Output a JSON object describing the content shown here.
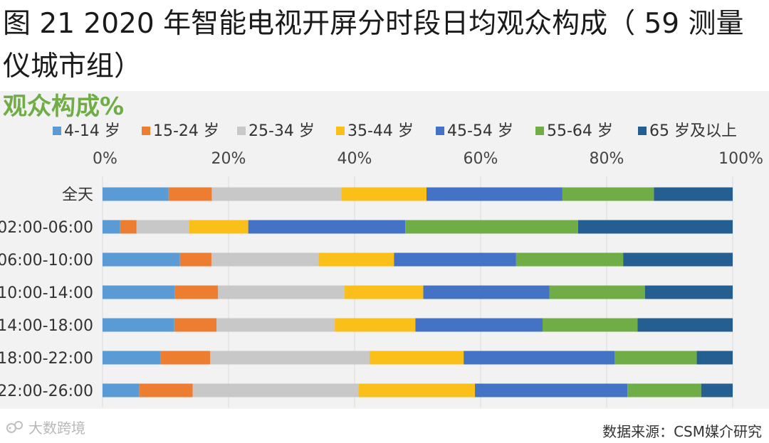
{
  "title": "图 21 2020 年智能电视开屏分时段日均观众构成（ 59 测量仪城市组）",
  "source": "数据来源：CSM媒介研究",
  "watermark": "大数跨境",
  "chart_data": {
    "type": "bar",
    "orientation": "horizontal",
    "stacked": true,
    "percent": true,
    "title": "观众构成%",
    "categories": [
      "全天",
      "02:00-06:00",
      "06:00-10:00",
      "10:00-14:00",
      "14:00-18:00",
      "18:00-22:00",
      "22:00-26:00"
    ],
    "x_ticks": [
      "0%",
      "20%",
      "40%",
      "60%",
      "80%",
      "100%"
    ],
    "xlim": [
      0,
      100
    ],
    "legend_position": "top",
    "grid": true,
    "series": [
      {
        "name": "4-14 岁",
        "color": "#5b9bd5",
        "values": [
          10.4,
          2.8,
          12.3,
          11.4,
          11.4,
          8.9,
          5.8
        ]
      },
      {
        "name": "15-24 岁",
        "color": "#ed7d31",
        "values": [
          6.8,
          2.6,
          5.0,
          6.9,
          6.7,
          7.6,
          8.5
        ]
      },
      {
        "name": "25-34 岁",
        "color": "#c8c8c8",
        "values": [
          20.4,
          8.3,
          17.0,
          20.0,
          18.8,
          24.4,
          26.3
        ]
      },
      {
        "name": "35-44 岁",
        "color": "#fbbf1a",
        "values": [
          13.4,
          9.4,
          12.0,
          12.5,
          12.8,
          14.4,
          18.5
        ]
      },
      {
        "name": "45-54 岁",
        "color": "#4472c4",
        "values": [
          21.4,
          24.9,
          19.4,
          20.0,
          20.2,
          23.1,
          24.2
        ]
      },
      {
        "name": "55-64 岁",
        "color": "#70ad47",
        "values": [
          14.4,
          27.4,
          17.0,
          15.1,
          15.1,
          12.6,
          11.7
        ]
      },
      {
        "name": "65 岁及以上",
        "color": "#255e91",
        "values": [
          12.4,
          24.5,
          17.4,
          13.9,
          15.1,
          5.5,
          5.0
        ]
      }
    ]
  }
}
